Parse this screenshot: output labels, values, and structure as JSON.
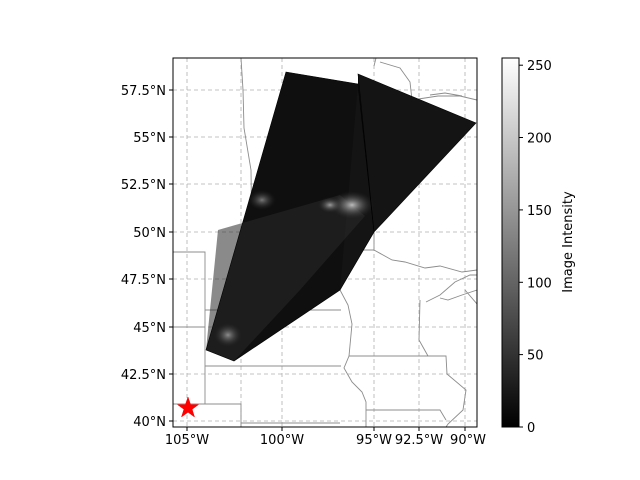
{
  "map": {
    "longitude_ticks": [
      "105°W",
      "100°W",
      "95°W",
      "92.5°W",
      "90°W"
    ],
    "latitude_ticks": [
      "57.5°N",
      "55°N",
      "52.5°N",
      "50°N",
      "47.5°N",
      "45°N",
      "42.5°N",
      "40°N"
    ],
    "gridlines": "dashed",
    "colormap": "grayscale",
    "marker": {
      "symbol": "star",
      "color": "#ff0000",
      "location": "lower-left"
    }
  },
  "colorbar": {
    "label": "Image Intensity",
    "ticks": [
      "0",
      "50",
      "100",
      "150",
      "200",
      "250"
    ],
    "range": [
      0,
      255
    ]
  }
}
